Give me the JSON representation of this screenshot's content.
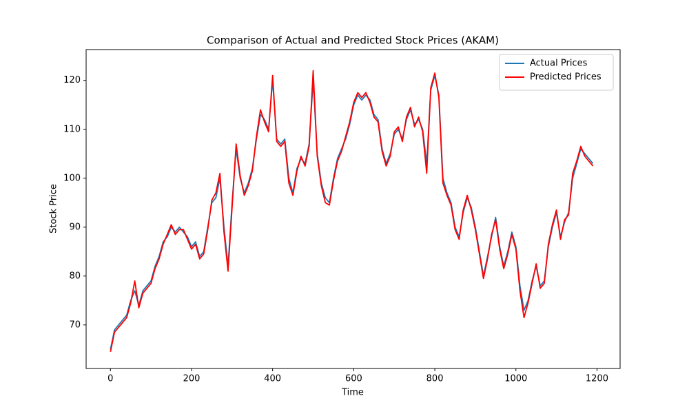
{
  "chart_data": {
    "type": "line",
    "title": "Comparison of Actual and Predicted Stock Prices (AKAM)",
    "xlabel": "Time",
    "ylabel": "Stock Price",
    "x": [
      0,
      10,
      20,
      30,
      40,
      50,
      60,
      70,
      80,
      90,
      100,
      110,
      120,
      130,
      140,
      150,
      160,
      170,
      180,
      190,
      200,
      210,
      220,
      230,
      240,
      250,
      260,
      270,
      280,
      290,
      300,
      310,
      320,
      330,
      340,
      350,
      360,
      370,
      380,
      390,
      400,
      410,
      420,
      430,
      440,
      450,
      460,
      470,
      480,
      490,
      500,
      510,
      520,
      530,
      540,
      550,
      560,
      570,
      580,
      590,
      600,
      610,
      620,
      630,
      640,
      650,
      660,
      670,
      680,
      690,
      700,
      710,
      720,
      730,
      740,
      750,
      760,
      770,
      780,
      790,
      800,
      810,
      820,
      830,
      840,
      850,
      860,
      870,
      880,
      890,
      900,
      910,
      920,
      930,
      940,
      950,
      960,
      970,
      980,
      990,
      1000,
      1010,
      1020,
      1030,
      1040,
      1050,
      1060,
      1070,
      1080,
      1090,
      1100,
      1110,
      1120,
      1130,
      1140,
      1150,
      1160,
      1170,
      1180,
      1190
    ],
    "series": [
      {
        "name": "Actual Prices",
        "color": "#1f77b4",
        "values": [
          65,
          69,
          70,
          71,
          72,
          75,
          77,
          74,
          77,
          78,
          79,
          82,
          84,
          87,
          88,
          90,
          89,
          90,
          89,
          88,
          86,
          87,
          84,
          85,
          90,
          95,
          96,
          100,
          90,
          82,
          95,
          106,
          100,
          97,
          99,
          102,
          108,
          113,
          112,
          110,
          120,
          108,
          107,
          108,
          100,
          97,
          102,
          104,
          103,
          107,
          120,
          105,
          99,
          96,
          95,
          100,
          104,
          106,
          108,
          111,
          115,
          117,
          116,
          117,
          116,
          113,
          112,
          106,
          103,
          105,
          109,
          110,
          108,
          112,
          114,
          111,
          112,
          110,
          103,
          118,
          121,
          117,
          100,
          97,
          95,
          90,
          88,
          93,
          96,
          94,
          90,
          85,
          80,
          84,
          88,
          92,
          86,
          82,
          85,
          89,
          86,
          78,
          73,
          75,
          79,
          82,
          78,
          79,
          86,
          90,
          93,
          88,
          91,
          93,
          100,
          103,
          106,
          105,
          104,
          103
        ]
      },
      {
        "name": "Predicted Prices",
        "color": "#ff0000",
        "values": [
          64.5,
          68.5,
          69.5,
          70.5,
          71.5,
          74.5,
          79,
          73.5,
          76.5,
          77.5,
          78.5,
          81.5,
          83.5,
          86.5,
          88.5,
          90.5,
          88.5,
          89.5,
          89.5,
          87.5,
          85.5,
          86.5,
          83.5,
          84.5,
          89.5,
          95.5,
          97,
          101,
          89,
          81,
          94,
          107,
          100.5,
          96.5,
          98.5,
          101.5,
          108.5,
          114,
          111.5,
          109.5,
          121,
          107.5,
          106.5,
          107.5,
          99,
          96.5,
          101.5,
          104.5,
          102.5,
          106.5,
          122,
          104.5,
          98.5,
          95,
          94.5,
          99.5,
          103.5,
          105.5,
          108.5,
          111.5,
          115.5,
          117.5,
          116.5,
          117.5,
          115.5,
          112.5,
          111.5,
          105.5,
          102.5,
          104.5,
          109.5,
          110.5,
          107.5,
          112.5,
          114.5,
          110.5,
          112.5,
          109.5,
          101,
          118.5,
          121.5,
          116.5,
          99,
          96.5,
          94.5,
          89.5,
          87.5,
          93.5,
          96.5,
          93.5,
          89.5,
          84.5,
          79.5,
          83.5,
          88.5,
          91.5,
          85.5,
          81.5,
          84.5,
          88.5,
          85.5,
          77,
          71.5,
          74.5,
          78.5,
          82.5,
          77.5,
          78.5,
          86.5,
          90.5,
          93.5,
          87.5,
          91.5,
          92.5,
          101,
          103.5,
          106.5,
          104.5,
          103.5,
          102.5
        ]
      }
    ],
    "xlim": [
      -60,
      1257
    ],
    "ylim": [
      61.1,
      126.3
    ],
    "xticks": [
      0,
      200,
      400,
      600,
      800,
      1000,
      1200
    ],
    "yticks": [
      70,
      80,
      90,
      100,
      110,
      120
    ],
    "legend": "upper right",
    "grid": false
  }
}
